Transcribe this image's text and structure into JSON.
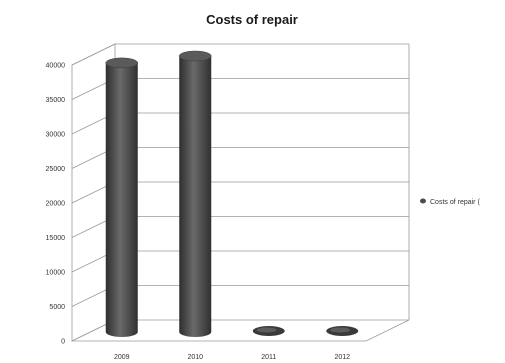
{
  "chart_data": {
    "type": "bar",
    "title": "Costs of repair",
    "categories": [
      "2009",
      "2010",
      "2011",
      "2012"
    ],
    "series": [
      {
        "name": "Costs of repair (",
        "values": [
          39000,
          40000,
          350,
          150
        ]
      }
    ],
    "y_ticks": [
      "0",
      "5000",
      "10000",
      "15000",
      "20000",
      "25000",
      "30000",
      "35000",
      "40000"
    ],
    "ylim": [
      0,
      40000
    ],
    "grid": true,
    "legend_position": "right",
    "bar_color": "#4d4d4d",
    "style": "3d-cylinder"
  }
}
